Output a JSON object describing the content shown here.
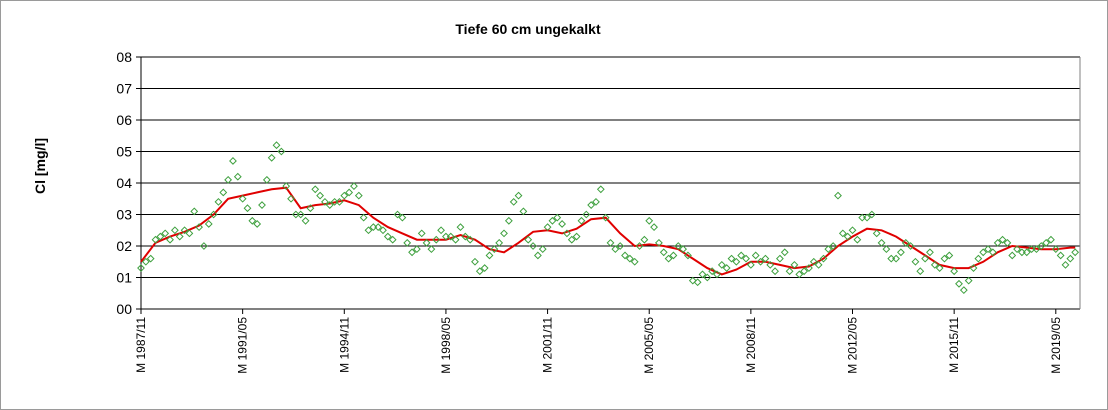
{
  "chart_data": {
    "type": "scatter",
    "title": "Tiefe  60 cm     ungekalkt",
    "ylabel": "Cl [mg/l]",
    "xlabel": "",
    "ylim": [
      0,
      8
    ],
    "yticks": [
      "00",
      "01",
      "02",
      "03",
      "04",
      "05",
      "06",
      "07",
      "08"
    ],
    "xlim": [
      "1987-11",
      "2020-03"
    ],
    "xticks": [
      {
        "label": "M 1987/11",
        "date": "1987-11"
      },
      {
        "label": "M 1991/05",
        "date": "1991-05"
      },
      {
        "label": "M 1994/11",
        "date": "1994-11"
      },
      {
        "label": "M 1998/05",
        "date": "1998-05"
      },
      {
        "label": "M 2001/11",
        "date": "2001-11"
      },
      {
        "label": "M 2005/05",
        "date": "2005-05"
      },
      {
        "label": "M 2008/11",
        "date": "2008-11"
      },
      {
        "label": "M 2012/05",
        "date": "2012-05"
      },
      {
        "label": "M 2015/11",
        "date": "2015-11"
      },
      {
        "label": "M 2019/05",
        "date": "2019-05"
      }
    ],
    "grid": "horizontal",
    "legend": "none",
    "colors": {
      "measured": "#3ea03e",
      "smoothed": "#e00000",
      "plot_area": "#ffffff",
      "grid": "#000000"
    },
    "series": [
      {
        "marker": "diamond-open",
        "points": [
          [
            "1987-11",
            1.3
          ],
          [
            "1988-01",
            1.5
          ],
          [
            "1988-03",
            1.6
          ],
          [
            "1988-05",
            2.2
          ],
          [
            "1988-07",
            2.3
          ],
          [
            "1988-09",
            2.4
          ],
          [
            "1988-11",
            2.2
          ],
          [
            "1989-01",
            2.5
          ],
          [
            "1989-03",
            2.3
          ],
          [
            "1989-05",
            2.5
          ],
          [
            "1989-07",
            2.4
          ],
          [
            "1989-09",
            3.1
          ],
          [
            "1989-11",
            2.6
          ],
          [
            "1990-01",
            2.0
          ],
          [
            "1990-03",
            2.7
          ],
          [
            "1990-05",
            3.0
          ],
          [
            "1990-07",
            3.4
          ],
          [
            "1990-09",
            3.7
          ],
          [
            "1990-11",
            4.1
          ],
          [
            "1991-01",
            4.7
          ],
          [
            "1991-03",
            4.2
          ],
          [
            "1991-05",
            3.5
          ],
          [
            "1991-07",
            3.2
          ],
          [
            "1991-09",
            2.8
          ],
          [
            "1991-11",
            2.7
          ],
          [
            "1992-01",
            3.3
          ],
          [
            "1992-03",
            4.1
          ],
          [
            "1992-05",
            4.8
          ],
          [
            "1992-07",
            5.2
          ],
          [
            "1992-09",
            5.0
          ],
          [
            "1992-11",
            3.9
          ],
          [
            "1993-01",
            3.5
          ],
          [
            "1993-03",
            3.0
          ],
          [
            "1993-05",
            3.0
          ],
          [
            "1993-07",
            2.8
          ],
          [
            "1993-09",
            3.2
          ],
          [
            "1993-11",
            3.8
          ],
          [
            "1994-01",
            3.6
          ],
          [
            "1994-03",
            3.4
          ],
          [
            "1994-05",
            3.3
          ],
          [
            "1994-07",
            3.4
          ],
          [
            "1994-09",
            3.4
          ],
          [
            "1994-11",
            3.6
          ],
          [
            "1995-01",
            3.7
          ],
          [
            "1995-03",
            3.9
          ],
          [
            "1995-05",
            3.6
          ],
          [
            "1995-07",
            2.9
          ],
          [
            "1995-09",
            2.5
          ],
          [
            "1995-11",
            2.6
          ],
          [
            "1996-01",
            2.6
          ],
          [
            "1996-03",
            2.5
          ],
          [
            "1996-05",
            2.3
          ],
          [
            "1996-07",
            2.2
          ],
          [
            "1996-09",
            3.0
          ],
          [
            "1996-11",
            2.9
          ],
          [
            "1997-01",
            2.1
          ],
          [
            "1997-03",
            1.8
          ],
          [
            "1997-05",
            1.9
          ],
          [
            "1997-07",
            2.4
          ],
          [
            "1997-09",
            2.1
          ],
          [
            "1997-11",
            1.9
          ],
          [
            "1998-01",
            2.2
          ],
          [
            "1998-03",
            2.5
          ],
          [
            "1998-05",
            2.3
          ],
          [
            "1998-07",
            2.3
          ],
          [
            "1998-09",
            2.2
          ],
          [
            "1998-11",
            2.6
          ],
          [
            "1999-01",
            2.3
          ],
          [
            "1999-03",
            2.2
          ],
          [
            "1999-05",
            1.5
          ],
          [
            "1999-07",
            1.2
          ],
          [
            "1999-09",
            1.3
          ],
          [
            "1999-11",
            1.7
          ],
          [
            "2000-01",
            1.9
          ],
          [
            "2000-03",
            2.1
          ],
          [
            "2000-05",
            2.4
          ],
          [
            "2000-07",
            2.8
          ],
          [
            "2000-09",
            3.4
          ],
          [
            "2000-11",
            3.6
          ],
          [
            "2001-01",
            3.1
          ],
          [
            "2001-03",
            2.2
          ],
          [
            "2001-05",
            2.0
          ],
          [
            "2001-07",
            1.7
          ],
          [
            "2001-09",
            1.9
          ],
          [
            "2001-11",
            2.6
          ],
          [
            "2002-01",
            2.8
          ],
          [
            "2002-03",
            2.9
          ],
          [
            "2002-05",
            2.7
          ],
          [
            "2002-07",
            2.4
          ],
          [
            "2002-09",
            2.2
          ],
          [
            "2002-11",
            2.3
          ],
          [
            "2003-01",
            2.8
          ],
          [
            "2003-03",
            3.0
          ],
          [
            "2003-05",
            3.3
          ],
          [
            "2003-07",
            3.4
          ],
          [
            "2003-09",
            3.8
          ],
          [
            "2003-11",
            2.9
          ],
          [
            "2004-01",
            2.1
          ],
          [
            "2004-03",
            1.9
          ],
          [
            "2004-05",
            2.0
          ],
          [
            "2004-07",
            1.7
          ],
          [
            "2004-09",
            1.6
          ],
          [
            "2004-11",
            1.5
          ],
          [
            "2005-01",
            2.0
          ],
          [
            "2005-03",
            2.2
          ],
          [
            "2005-05",
            2.8
          ],
          [
            "2005-07",
            2.6
          ],
          [
            "2005-09",
            2.1
          ],
          [
            "2005-11",
            1.8
          ],
          [
            "2006-01",
            1.6
          ],
          [
            "2006-03",
            1.7
          ],
          [
            "2006-05",
            2.0
          ],
          [
            "2006-07",
            1.9
          ],
          [
            "2006-09",
            1.7
          ],
          [
            "2006-11",
            0.9
          ],
          [
            "2007-01",
            0.85
          ],
          [
            "2007-03",
            1.1
          ],
          [
            "2007-05",
            1.0
          ],
          [
            "2007-07",
            1.2
          ],
          [
            "2007-09",
            1.1
          ],
          [
            "2007-11",
            1.4
          ],
          [
            "2008-01",
            1.3
          ],
          [
            "2008-03",
            1.6
          ],
          [
            "2008-05",
            1.5
          ],
          [
            "2008-07",
            1.7
          ],
          [
            "2008-09",
            1.6
          ],
          [
            "2008-11",
            1.4
          ],
          [
            "2009-01",
            1.7
          ],
          [
            "2009-03",
            1.5
          ],
          [
            "2009-05",
            1.6
          ],
          [
            "2009-07",
            1.4
          ],
          [
            "2009-09",
            1.2
          ],
          [
            "2009-11",
            1.6
          ],
          [
            "2010-01",
            1.8
          ],
          [
            "2010-03",
            1.2
          ],
          [
            "2010-05",
            1.4
          ],
          [
            "2010-07",
            1.1
          ],
          [
            "2010-09",
            1.2
          ],
          [
            "2010-11",
            1.3
          ],
          [
            "2011-01",
            1.5
          ],
          [
            "2011-03",
            1.4
          ],
          [
            "2011-05",
            1.6
          ],
          [
            "2011-07",
            1.9
          ],
          [
            "2011-09",
            2.0
          ],
          [
            "2011-11",
            3.6
          ],
          [
            "2012-01",
            2.4
          ],
          [
            "2012-03",
            2.3
          ],
          [
            "2012-05",
            2.5
          ],
          [
            "2012-07",
            2.2
          ],
          [
            "2012-09",
            2.9
          ],
          [
            "2012-11",
            2.9
          ],
          [
            "2013-01",
            3.0
          ],
          [
            "2013-03",
            2.4
          ],
          [
            "2013-05",
            2.1
          ],
          [
            "2013-07",
            1.9
          ],
          [
            "2013-09",
            1.6
          ],
          [
            "2013-11",
            1.6
          ],
          [
            "2014-01",
            1.8
          ],
          [
            "2014-03",
            2.1
          ],
          [
            "2014-05",
            2.0
          ],
          [
            "2014-07",
            1.5
          ],
          [
            "2014-09",
            1.2
          ],
          [
            "2014-11",
            1.6
          ],
          [
            "2015-01",
            1.8
          ],
          [
            "2015-03",
            1.4
          ],
          [
            "2015-05",
            1.3
          ],
          [
            "2015-07",
            1.6
          ],
          [
            "2015-09",
            1.7
          ],
          [
            "2015-11",
            1.2
          ],
          [
            "2016-01",
            0.8
          ],
          [
            "2016-03",
            0.6
          ],
          [
            "2016-05",
            0.9
          ],
          [
            "2016-07",
            1.3
          ],
          [
            "2016-09",
            1.6
          ],
          [
            "2016-11",
            1.8
          ],
          [
            "2017-01",
            1.9
          ],
          [
            "2017-03",
            1.8
          ],
          [
            "2017-05",
            2.1
          ],
          [
            "2017-07",
            2.2
          ],
          [
            "2017-09",
            2.1
          ],
          [
            "2017-11",
            1.7
          ],
          [
            "2018-01",
            1.9
          ],
          [
            "2018-03",
            1.8
          ],
          [
            "2018-05",
            1.8
          ],
          [
            "2018-07",
            1.9
          ],
          [
            "2018-09",
            1.9
          ],
          [
            "2018-11",
            2.0
          ],
          [
            "2019-01",
            2.1
          ],
          [
            "2019-03",
            2.2
          ],
          [
            "2019-05",
            1.9
          ],
          [
            "2019-07",
            1.7
          ],
          [
            "2019-09",
            1.4
          ],
          [
            "2019-11",
            1.6
          ],
          [
            "2020-01",
            1.8
          ]
        ]
      },
      {
        "line": "smoothed",
        "points": [
          [
            "1987-11",
            1.5
          ],
          [
            "1988-05",
            2.1
          ],
          [
            "1988-11",
            2.3
          ],
          [
            "1989-05",
            2.45
          ],
          [
            "1989-11",
            2.65
          ],
          [
            "1990-05",
            3.0
          ],
          [
            "1990-11",
            3.5
          ],
          [
            "1991-05",
            3.6
          ],
          [
            "1991-11",
            3.7
          ],
          [
            "1992-05",
            3.8
          ],
          [
            "1992-11",
            3.85
          ],
          [
            "1993-05",
            3.2
          ],
          [
            "1993-11",
            3.3
          ],
          [
            "1994-05",
            3.35
          ],
          [
            "1994-11",
            3.45
          ],
          [
            "1995-05",
            3.3
          ],
          [
            "1995-11",
            2.9
          ],
          [
            "1996-05",
            2.6
          ],
          [
            "1996-11",
            2.4
          ],
          [
            "1997-05",
            2.2
          ],
          [
            "1997-11",
            2.2
          ],
          [
            "1998-05",
            2.2
          ],
          [
            "1998-11",
            2.35
          ],
          [
            "1999-05",
            2.2
          ],
          [
            "1999-11",
            1.9
          ],
          [
            "2000-05",
            1.8
          ],
          [
            "2000-11",
            2.1
          ],
          [
            "2001-05",
            2.45
          ],
          [
            "2001-11",
            2.5
          ],
          [
            "2002-05",
            2.4
          ],
          [
            "2002-11",
            2.55
          ],
          [
            "2003-05",
            2.85
          ],
          [
            "2003-11",
            2.9
          ],
          [
            "2004-05",
            2.4
          ],
          [
            "2004-11",
            2.0
          ],
          [
            "2005-05",
            2.05
          ],
          [
            "2005-11",
            2.0
          ],
          [
            "2006-05",
            1.9
          ],
          [
            "2006-11",
            1.6
          ],
          [
            "2007-05",
            1.3
          ],
          [
            "2007-11",
            1.1
          ],
          [
            "2008-05",
            1.25
          ],
          [
            "2008-11",
            1.5
          ],
          [
            "2009-05",
            1.5
          ],
          [
            "2009-11",
            1.4
          ],
          [
            "2010-05",
            1.3
          ],
          [
            "2010-11",
            1.35
          ],
          [
            "2011-05",
            1.6
          ],
          [
            "2011-11",
            2.0
          ],
          [
            "2012-05",
            2.3
          ],
          [
            "2012-11",
            2.55
          ],
          [
            "2013-05",
            2.5
          ],
          [
            "2013-11",
            2.3
          ],
          [
            "2014-05",
            2.0
          ],
          [
            "2014-11",
            1.7
          ],
          [
            "2015-05",
            1.4
          ],
          [
            "2015-11",
            1.3
          ],
          [
            "2016-05",
            1.3
          ],
          [
            "2016-11",
            1.5
          ],
          [
            "2017-05",
            1.8
          ],
          [
            "2017-11",
            2.0
          ],
          [
            "2018-05",
            1.95
          ],
          [
            "2018-11",
            1.9
          ],
          [
            "2019-05",
            1.9
          ],
          [
            "2019-11",
            1.95
          ],
          [
            "2020-01",
            1.95
          ]
        ]
      }
    ]
  }
}
